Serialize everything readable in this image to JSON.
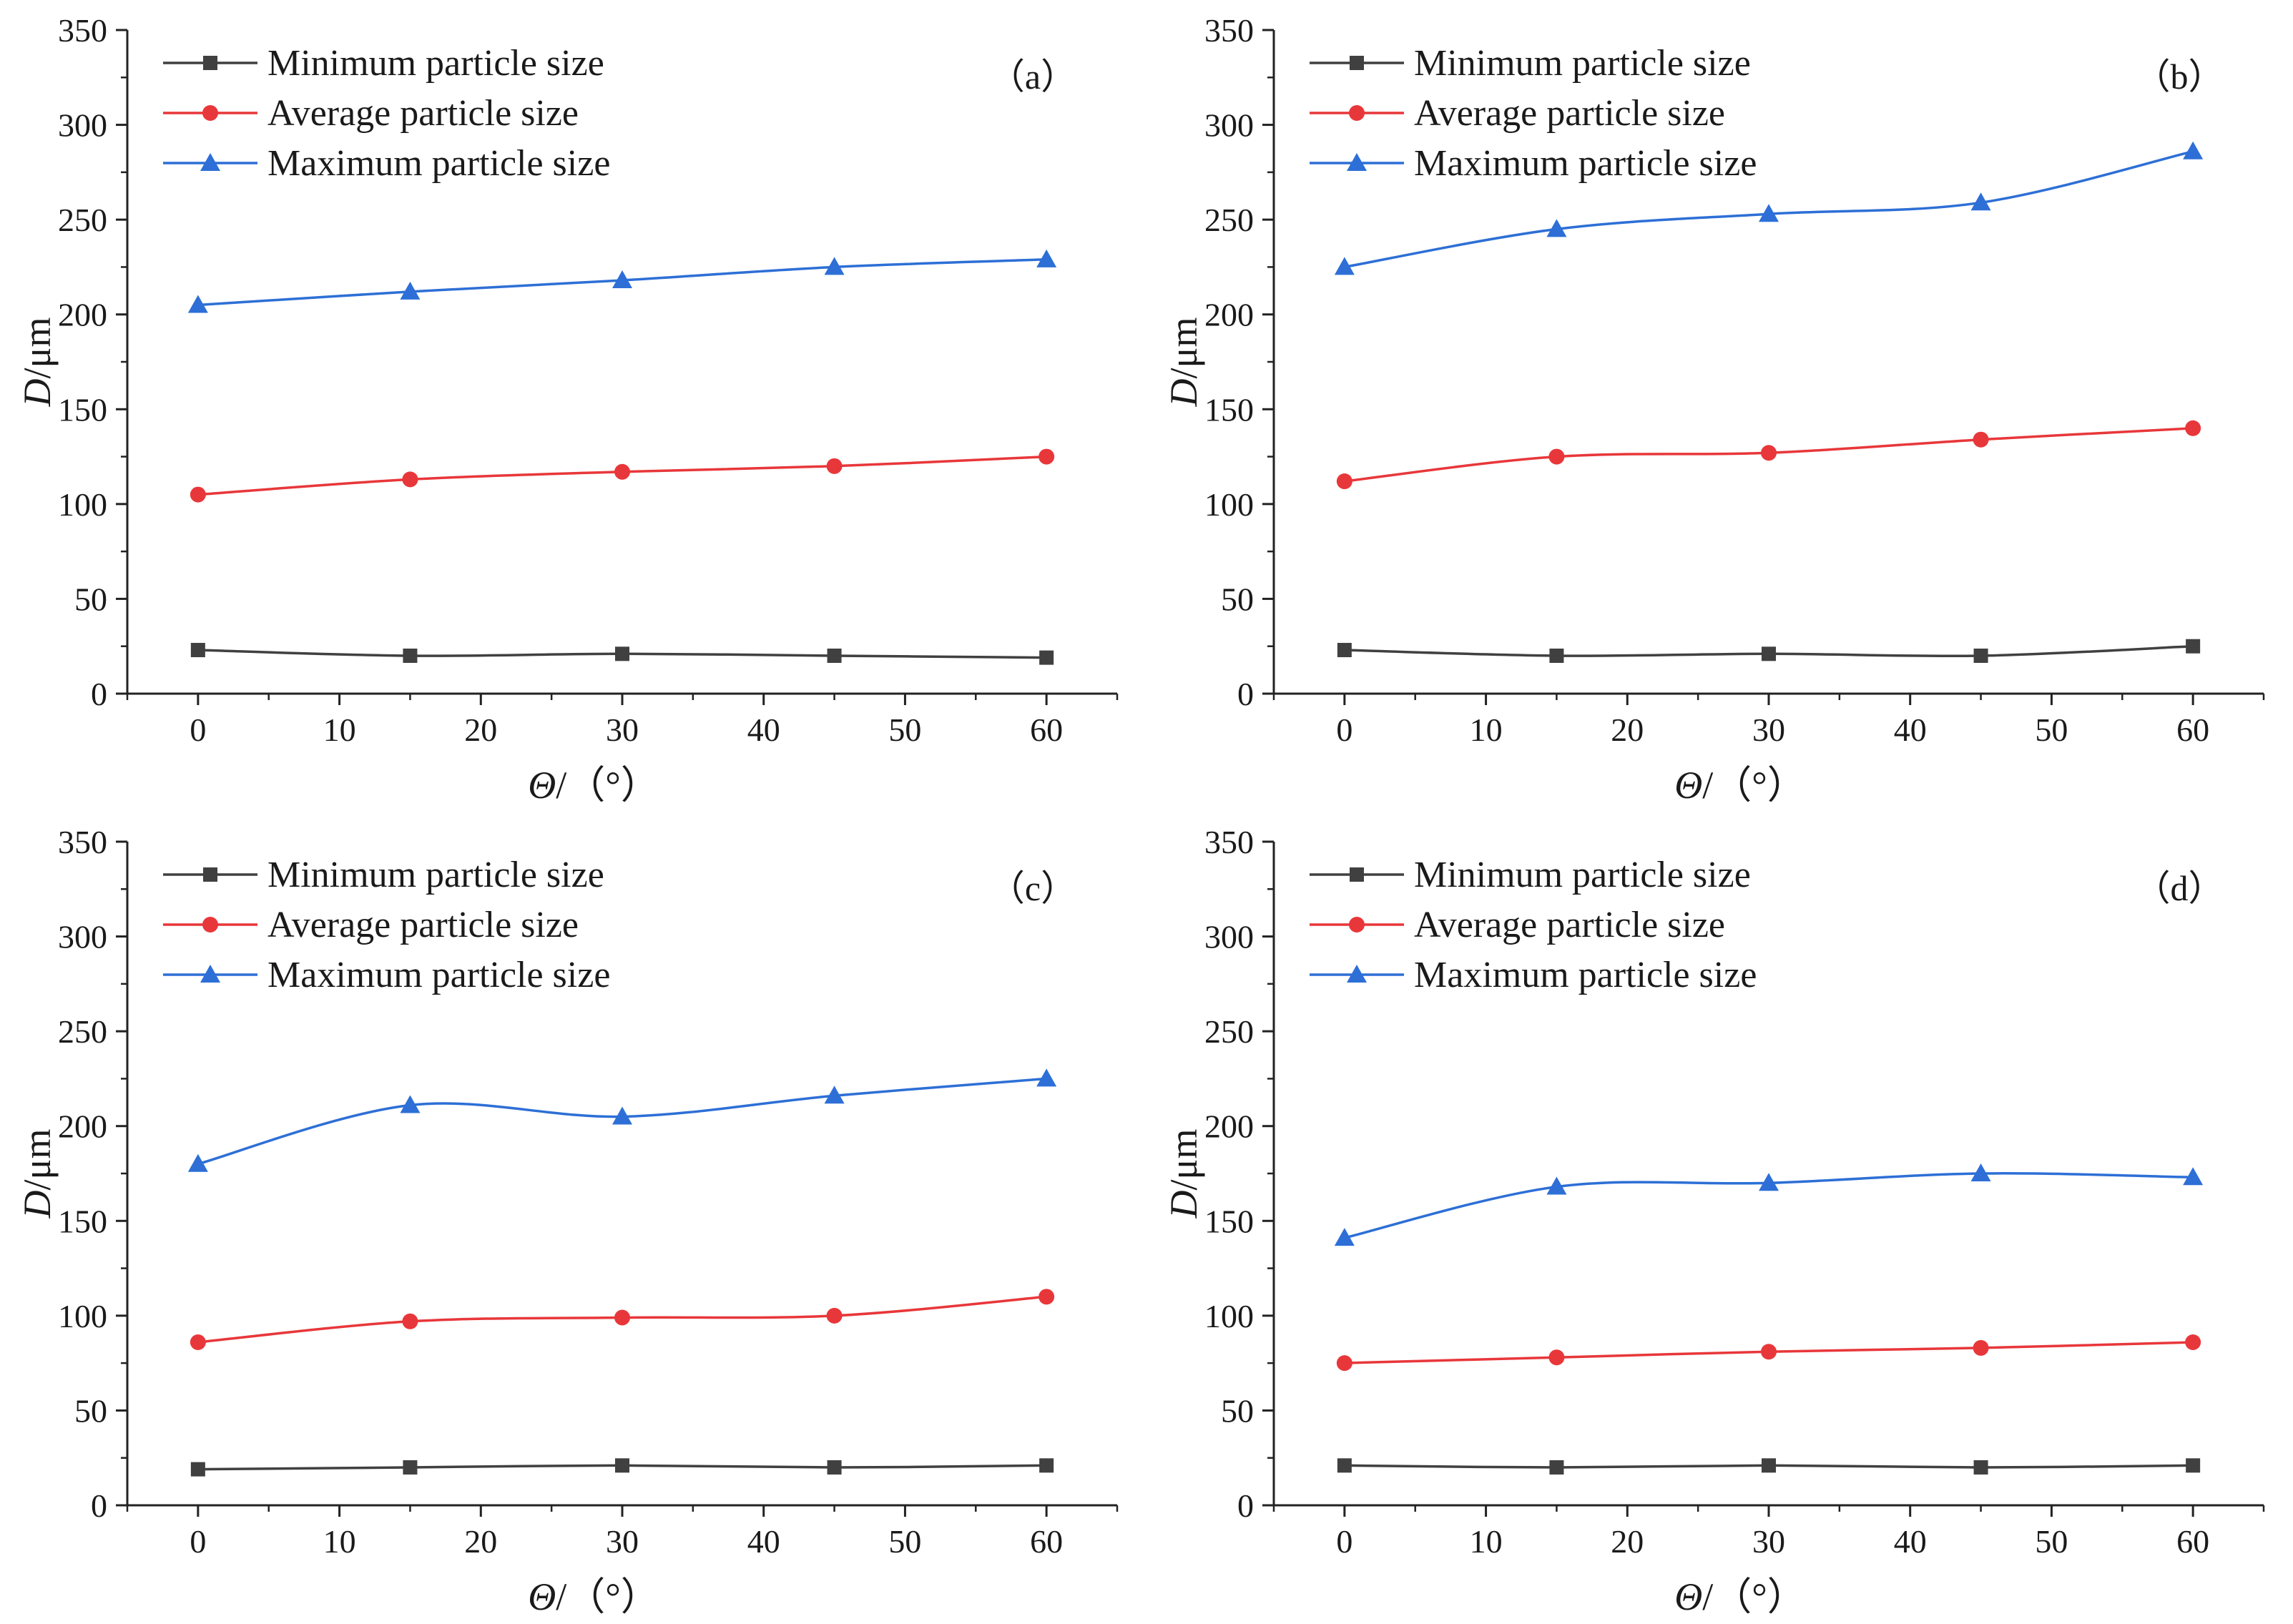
{
  "figure": {
    "title": ""
  },
  "chart_data": [
    {
      "type": "line",
      "panel_label": "（a）",
      "x": [
        0,
        15,
        30,
        45,
        60
      ],
      "xlim": [
        -5,
        65
      ],
      "xticks": [
        0,
        10,
        20,
        30,
        40,
        50,
        60
      ],
      "ylim": [
        0,
        350
      ],
      "yticks": [
        0,
        50,
        100,
        150,
        200,
        250,
        300,
        350
      ],
      "xlabel_symbol": "Θ",
      "xlabel_unit": "/（°）",
      "ylabel_symbol": "D",
      "ylabel_unit": "/μm",
      "legend_position": "top-left",
      "series": [
        {
          "name": "Minimum particle size",
          "color": "#404040",
          "marker": "square",
          "values": [
            23,
            20,
            21,
            20,
            19
          ]
        },
        {
          "name": "Average particle size",
          "color": "#e8373a",
          "marker": "circle",
          "values": [
            105,
            113,
            117,
            120,
            125
          ]
        },
        {
          "name": "Maximum particle size",
          "color": "#2d6fd6",
          "marker": "triangle",
          "values": [
            205,
            212,
            218,
            225,
            229
          ]
        }
      ]
    },
    {
      "type": "line",
      "panel_label": "（b）",
      "x": [
        0,
        15,
        30,
        45,
        60
      ],
      "xlim": [
        -5,
        65
      ],
      "xticks": [
        0,
        10,
        20,
        30,
        40,
        50,
        60
      ],
      "ylim": [
        0,
        350
      ],
      "yticks": [
        0,
        50,
        100,
        150,
        200,
        250,
        300,
        350
      ],
      "xlabel_symbol": "Θ",
      "xlabel_unit": "/（°）",
      "ylabel_symbol": "D",
      "ylabel_unit": "/μm",
      "legend_position": "top-left",
      "series": [
        {
          "name": "Minimum particle size",
          "color": "#404040",
          "marker": "square",
          "values": [
            23,
            20,
            21,
            20,
            25
          ]
        },
        {
          "name": "Average particle size",
          "color": "#e8373a",
          "marker": "circle",
          "values": [
            112,
            125,
            127,
            134,
            140
          ]
        },
        {
          "name": "Maximum particle size",
          "color": "#2d6fd6",
          "marker": "triangle",
          "values": [
            225,
            245,
            253,
            259,
            286
          ]
        }
      ]
    },
    {
      "type": "line",
      "panel_label": "（c）",
      "x": [
        0,
        15,
        30,
        45,
        60
      ],
      "xlim": [
        -5,
        65
      ],
      "xticks": [
        0,
        10,
        20,
        30,
        40,
        50,
        60
      ],
      "ylim": [
        0,
        350
      ],
      "yticks": [
        0,
        50,
        100,
        150,
        200,
        250,
        300,
        350
      ],
      "xlabel_symbol": "Θ",
      "xlabel_unit": "/（°）",
      "ylabel_symbol": "D",
      "ylabel_unit": "/μm",
      "legend_position": "top-left",
      "series": [
        {
          "name": "Minimum particle size",
          "color": "#404040",
          "marker": "square",
          "values": [
            19,
            20,
            21,
            20,
            21
          ]
        },
        {
          "name": "Average particle size",
          "color": "#e8373a",
          "marker": "circle",
          "values": [
            86,
            97,
            99,
            100,
            110
          ]
        },
        {
          "name": "Maximum particle size",
          "color": "#2d6fd6",
          "marker": "triangle",
          "values": [
            180,
            211,
            205,
            216,
            225
          ]
        }
      ]
    },
    {
      "type": "line",
      "panel_label": "（d）",
      "x": [
        0,
        15,
        30,
        45,
        60
      ],
      "xlim": [
        -5,
        65
      ],
      "xticks": [
        0,
        10,
        20,
        30,
        40,
        50,
        60
      ],
      "ylim": [
        0,
        350
      ],
      "yticks": [
        0,
        50,
        100,
        150,
        200,
        250,
        300,
        350
      ],
      "xlabel_symbol": "Θ",
      "xlabel_unit": "/（°）",
      "ylabel_symbol": "D",
      "ylabel_unit": "/μm",
      "legend_position": "top-left",
      "series": [
        {
          "name": "Minimum particle size",
          "color": "#404040",
          "marker": "square",
          "values": [
            21,
            20,
            21,
            20,
            21
          ]
        },
        {
          "name": "Average particle size",
          "color": "#e8373a",
          "marker": "circle",
          "values": [
            75,
            78,
            81,
            83,
            86
          ]
        },
        {
          "name": "Maximum particle size",
          "color": "#2d6fd6",
          "marker": "triangle",
          "values": [
            141,
            168,
            170,
            175,
            173
          ]
        }
      ]
    }
  ]
}
